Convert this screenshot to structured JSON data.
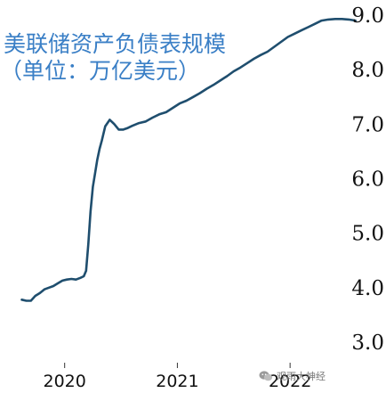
{
  "title_line1": "美联储资产负债表规模",
  "title_line2": "（单位：万亿美元）",
  "watermark": "观雨大神经",
  "chart_data": {
    "type": "line",
    "title": "美联储资产负债表规模",
    "subtitle": "（单位：万亿美元）",
    "ylim": [
      3.0,
      9.0
    ],
    "yticks": [
      "3.0",
      "4.0",
      "5.0",
      "6.0",
      "7.0",
      "8.0",
      "9.0"
    ],
    "ytick_values": [
      3,
      4,
      5,
      6,
      7,
      8,
      9
    ],
    "xticks": [
      "2020",
      "2021",
      "2022"
    ],
    "xtick_values": [
      2020.0,
      2021.0,
      2022.0
    ],
    "xlim": [
      2019.6,
      2022.63
    ],
    "line_color": "#1f4e6e",
    "text_color": "#3a7fc6",
    "grid": false,
    "series": [
      {
        "x": [
          2019.62,
          2019.66,
          2019.7,
          2019.74,
          2019.78,
          2019.82,
          2019.86,
          2019.9,
          2019.94,
          2019.98,
          2020.02,
          2020.06,
          2020.1,
          2020.14,
          2020.17,
          2020.19,
          2020.21,
          2020.23,
          2020.25,
          2020.27,
          2020.29,
          2020.31,
          2020.33,
          2020.36,
          2020.4,
          2020.44,
          2020.48,
          2020.52,
          2020.56,
          2020.6,
          2020.66,
          2020.72,
          2020.78,
          2020.84,
          2020.9,
          2020.96,
          2021.02,
          2021.08,
          2021.14,
          2021.2,
          2021.26,
          2021.32,
          2021.38,
          2021.44,
          2021.5,
          2021.56,
          2021.62,
          2021.68,
          2021.74,
          2021.8,
          2021.86,
          2021.92,
          2021.98,
          2022.04,
          2022.1,
          2022.16,
          2022.22,
          2022.28,
          2022.34,
          2022.4,
          2022.46,
          2022.52,
          2022.58
        ],
        "y": [
          3.78,
          3.76,
          3.76,
          3.85,
          3.9,
          3.97,
          4.0,
          4.03,
          4.08,
          4.13,
          4.15,
          4.16,
          4.15,
          4.18,
          4.21,
          4.31,
          4.8,
          5.4,
          5.85,
          6.1,
          6.35,
          6.55,
          6.7,
          6.96,
          7.08,
          7.0,
          6.9,
          6.9,
          6.93,
          6.97,
          7.02,
          7.05,
          7.12,
          7.18,
          7.22,
          7.3,
          7.38,
          7.43,
          7.5,
          7.57,
          7.65,
          7.72,
          7.8,
          7.88,
          7.97,
          8.04,
          8.12,
          8.2,
          8.27,
          8.33,
          8.42,
          8.51,
          8.6,
          8.66,
          8.72,
          8.78,
          8.84,
          8.9,
          8.92,
          8.93,
          8.93,
          8.92,
          8.9
        ]
      }
    ]
  }
}
